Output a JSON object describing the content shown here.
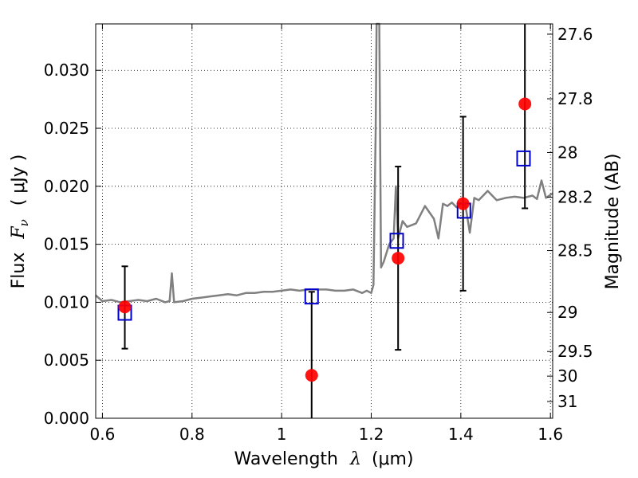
{
  "chart_data": {
    "type": "scatter",
    "xlabel_prefix": "Wavelength",
    "xlabel_symbol": "λ",
    "xlabel_unit": "(μm)",
    "ylabel_prefix": "Flux",
    "ylabel_symbol": "F",
    "ylabel_subscript": "ν",
    "ylabel_unit": "( μJy )",
    "y2label": "Magnitude (AB)",
    "xlim": [
      0.585,
      1.605
    ],
    "ylim": [
      0.0,
      0.034
    ],
    "grid": true,
    "x_ticks": [
      0.6,
      0.8,
      1.0,
      1.2,
      1.4,
      1.6
    ],
    "x_tick_labels": [
      "0.6",
      "0.8",
      "1",
      "1.2",
      "1.4",
      "1.6"
    ],
    "y_ticks": [
      0.0,
      0.005,
      0.01,
      0.015,
      0.02,
      0.025,
      0.03
    ],
    "y_tick_labels": [
      "0.000",
      "0.005",
      "0.010",
      "0.015",
      "0.020",
      "0.025",
      "0.030"
    ],
    "mag_ticks": [
      27.6,
      27.8,
      28,
      28.2,
      28.5,
      29,
      29.5,
      30,
      31
    ],
    "mag_tick_labels": [
      "27.6",
      "27.8",
      "28",
      "28.2",
      "28.5",
      "29",
      "29.5",
      "30",
      "31"
    ],
    "observed": {
      "color": "#ff0000",
      "x": [
        0.65,
        1.067,
        1.26,
        1.405,
        1.543
      ],
      "y": [
        0.0096,
        0.0037,
        0.0138,
        0.0185,
        0.0271
      ],
      "yerr_low": [
        0.006,
        0.0,
        0.0059,
        0.011,
        0.0181
      ],
      "yerr_high": [
        0.0131,
        0.0109,
        0.0217,
        0.026,
        0.034
      ]
    },
    "model_photometry": {
      "color": "#0000cc",
      "x": [
        0.65,
        1.067,
        1.257,
        1.407,
        1.54
      ],
      "y": [
        0.0091,
        0.0105,
        0.0153,
        0.0179,
        0.0224
      ]
    },
    "model_spectrum": {
      "color": "#808080",
      "x": [
        0.585,
        0.6,
        0.62,
        0.64,
        0.66,
        0.68,
        0.7,
        0.72,
        0.74,
        0.75,
        0.755,
        0.76,
        0.78,
        0.8,
        0.82,
        0.84,
        0.86,
        0.88,
        0.9,
        0.92,
        0.94,
        0.96,
        0.98,
        1.0,
        1.02,
        1.04,
        1.06,
        1.08,
        1.1,
        1.12,
        1.14,
        1.16,
        1.18,
        1.19,
        1.2,
        1.205,
        1.21,
        1.212,
        1.218,
        1.222,
        1.228,
        1.24,
        1.25,
        1.255,
        1.26,
        1.27,
        1.28,
        1.3,
        1.32,
        1.34,
        1.35,
        1.36,
        1.37,
        1.38,
        1.39,
        1.4,
        1.41,
        1.42,
        1.43,
        1.44,
        1.46,
        1.48,
        1.5,
        1.52,
        1.54,
        1.56,
        1.57,
        1.58,
        1.59,
        1.605
      ],
      "y": [
        0.0106,
        0.0101,
        0.0102,
        0.01,
        0.0101,
        0.0102,
        0.0101,
        0.0103,
        0.01,
        0.0101,
        0.0125,
        0.01,
        0.0101,
        0.0103,
        0.0104,
        0.0105,
        0.0106,
        0.0107,
        0.0106,
        0.0108,
        0.0108,
        0.0109,
        0.0109,
        0.011,
        0.0111,
        0.011,
        0.0111,
        0.0111,
        0.0111,
        0.011,
        0.011,
        0.0111,
        0.0108,
        0.011,
        0.0108,
        0.0115,
        0.025,
        0.034,
        0.034,
        0.013,
        0.0135,
        0.015,
        0.0155,
        0.02,
        0.0155,
        0.017,
        0.0165,
        0.0168,
        0.0183,
        0.0172,
        0.0155,
        0.0185,
        0.0183,
        0.0186,
        0.0182,
        0.0185,
        0.0184,
        0.016,
        0.019,
        0.0188,
        0.0196,
        0.0188,
        0.019,
        0.0191,
        0.019,
        0.0192,
        0.0189,
        0.0205,
        0.019,
        0.0194
      ]
    }
  }
}
